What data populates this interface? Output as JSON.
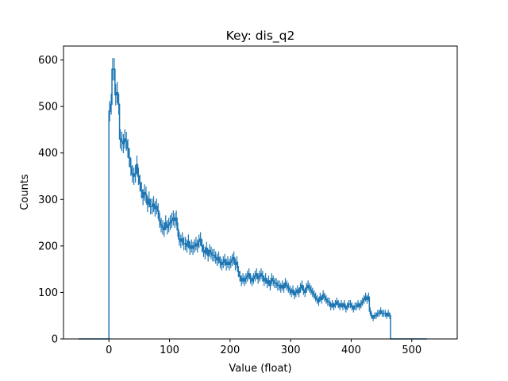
{
  "chart_data": {
    "type": "histogram",
    "title": "Key: dis_q2",
    "xlabel": "Value (float)",
    "ylabel": "Counts",
    "xlim": [
      -75,
      575
    ],
    "ylim": [
      0,
      630
    ],
    "xticks": [
      0,
      100,
      200,
      300,
      400,
      500
    ],
    "yticks": [
      0,
      100,
      200,
      300,
      400,
      500,
      600
    ],
    "grid": false,
    "color": "#1f77b4",
    "bin_width": 2.5,
    "bins_start": -50,
    "values": [
      0,
      0,
      0,
      0,
      0,
      0,
      0,
      0,
      0,
      0,
      0,
      0,
      0,
      0,
      0,
      0,
      0,
      0,
      0,
      0,
      490,
      505,
      580,
      580,
      525,
      530,
      505,
      430,
      425,
      420,
      430,
      425,
      410,
      390,
      370,
      355,
      350,
      355,
      375,
      350,
      335,
      320,
      305,
      315,
      310,
      290,
      300,
      285,
      285,
      290,
      280,
      285,
      275,
      255,
      245,
      240,
      235,
      250,
      240,
      245,
      250,
      255,
      260,
      255,
      260,
      235,
      215,
      210,
      215,
      205,
      205,
      200,
      210,
      195,
      200,
      195,
      200,
      205,
      200,
      210,
      215,
      200,
      190,
      185,
      195,
      180,
      190,
      185,
      180,
      180,
      175,
      170,
      175,
      165,
      160,
      165,
      170,
      160,
      165,
      160,
      165,
      170,
      175,
      160,
      165,
      145,
      135,
      125,
      130,
      125,
      130,
      135,
      140,
      130,
      125,
      130,
      135,
      140,
      130,
      135,
      140,
      135,
      125,
      130,
      120,
      125,
      115,
      130,
      125,
      120,
      120,
      115,
      115,
      110,
      115,
      110,
      120,
      115,
      110,
      105,
      100,
      105,
      95,
      100,
      105,
      100,
      110,
      115,
      105,
      100,
      110,
      115,
      110,
      105,
      100,
      95,
      90,
      85,
      80,
      90,
      85,
      95,
      90,
      85,
      80,
      80,
      70,
      75,
      70,
      75,
      80,
      75,
      70,
      75,
      70,
      75,
      65,
      70,
      75,
      75,
      70,
      65,
      70,
      70,
      75,
      70,
      75,
      80,
      85,
      90,
      85,
      90,
      60,
      50,
      45,
      50,
      50,
      55,
      55,
      60,
      55,
      55,
      55,
      50,
      55,
      50,
      0,
      0,
      0,
      0,
      0,
      0,
      0,
      0,
      0,
      0,
      0,
      0,
      0,
      0,
      0,
      0,
      0,
      0,
      0,
      0,
      0,
      0,
      0,
      0
    ]
  }
}
